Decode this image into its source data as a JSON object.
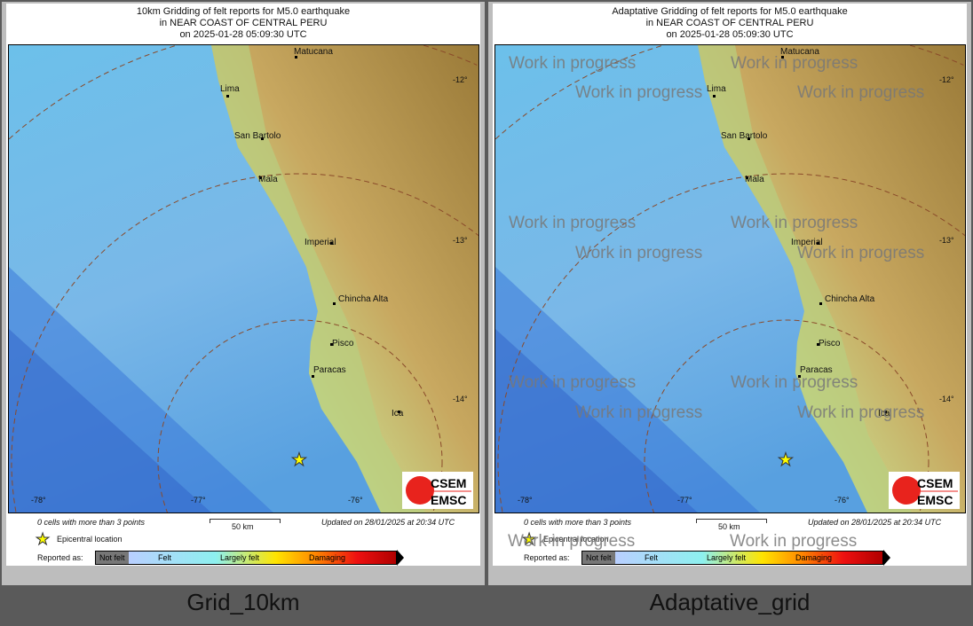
{
  "panels": [
    {
      "title": [
        "10km Gridding of felt reports for M5.0 earthquake",
        "in NEAR COAST OF CENTRAL PERU",
        "on  2025-01-28 05:09:30 UTC"
      ],
      "caption": "Grid_10km",
      "watermark": ""
    },
    {
      "title": [
        "Adaptative Gridding of felt reports for M5.0 earthquake",
        "in NEAR COAST OF CENTRAL PERU",
        "on  2025-01-28 05:09:30 UTC"
      ],
      "caption": "Adaptative_grid",
      "watermark": "Work in progress"
    }
  ],
  "cities": [
    "Matucana",
    "Lima",
    "San Bartolo",
    "Mala",
    "Imperial",
    "Chincha Alta",
    "Pisco",
    "Paracas",
    "Ica"
  ],
  "lat_ticks": [
    "-12°",
    "-13°",
    "-14°"
  ],
  "lon_ticks": [
    "-78°",
    "-77°",
    "-76°"
  ],
  "footer": {
    "cells": "0 cells with more than 3 points",
    "scale": "50 km",
    "updated": "Updated on 28/01/2025 at 20:34 UTC",
    "epicenter": "Epicentral location",
    "reported": "Reported as:"
  },
  "legend": [
    "Not felt",
    "Felt",
    "Largely felt",
    "Damaging"
  ],
  "logo": [
    "CSEM",
    "EMSC"
  ],
  "colors": {
    "ocean": "#6cc0ea",
    "deep_ocean": "#3a78d8",
    "land_low": "#c9d98a",
    "land_high": "#9a7a38",
    "star": "#ffff00"
  }
}
